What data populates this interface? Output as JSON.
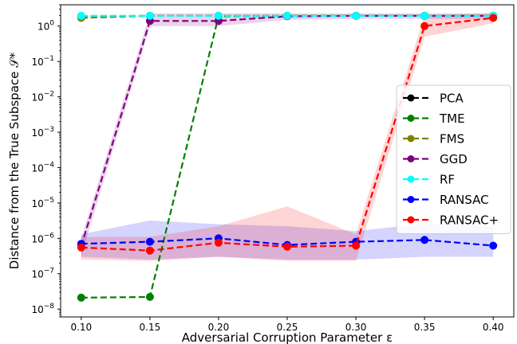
{
  "chart_data": {
    "type": "line",
    "title": "",
    "xlabel": "Adversarial Corruption Parameter ε",
    "ylabel": "Distance from the True Subspace 𝒮*",
    "y_scale": "log",
    "xlim": [
      0.085,
      0.415
    ],
    "ylim": [
      6e-09,
      4
    ],
    "x_ticks": [
      0.1,
      0.15,
      0.2,
      0.25,
      0.3,
      0.35,
      0.4
    ],
    "x_tick_labels": [
      "0.10",
      "0.15",
      "0.20",
      "0.25",
      "0.30",
      "0.35",
      "0.40"
    ],
    "y_ticks": [
      1e-08,
      1e-07,
      1e-06,
      1e-05,
      0.0001,
      0.001,
      0.01,
      0.1,
      1
    ],
    "y_tick_labels": [
      {
        "base": "10",
        "exp": "−8"
      },
      {
        "base": "10",
        "exp": "−7"
      },
      {
        "base": "10",
        "exp": "−6"
      },
      {
        "base": "10",
        "exp": "−5"
      },
      {
        "base": "10",
        "exp": "−4"
      },
      {
        "base": "10",
        "exp": "−3"
      },
      {
        "base": "10",
        "exp": "−2"
      },
      {
        "base": "10",
        "exp": "−1"
      },
      {
        "base": "10",
        "exp": "0"
      }
    ],
    "grid": false,
    "legend_position": "center-right",
    "x": [
      0.1,
      0.15,
      0.2,
      0.25,
      0.3,
      0.35,
      0.4
    ],
    "series": [
      {
        "name": "PCA",
        "color": "#000000",
        "values": [
          1.9,
          1.95,
          1.95,
          1.95,
          1.95,
          1.95,
          1.95
        ]
      },
      {
        "name": "TME",
        "color": "#008000",
        "values": [
          2.1e-08,
          2.2e-08,
          1.9,
          1.95,
          1.95,
          1.95,
          1.95
        ]
      },
      {
        "name": "FMS",
        "color": "#808000",
        "values": [
          1.7,
          1.95,
          1.95,
          1.95,
          1.95,
          1.95,
          1.95
        ]
      },
      {
        "name": "GGD",
        "color": "#800080",
        "values": [
          6e-07,
          1.4,
          1.4,
          1.9,
          1.95,
          1.95,
          1.95
        ],
        "band_low": [
          3e-07,
          1.0,
          1.0,
          1.5,
          1.6,
          1.6,
          1.6
        ],
        "band_high": [
          1e-06,
          2.3,
          2.3,
          2.3,
          2.3,
          2.3,
          2.3
        ]
      },
      {
        "name": "RF",
        "color": "#00ffff",
        "values": [
          1.95,
          1.95,
          1.95,
          1.95,
          1.95,
          1.95,
          1.95
        ]
      },
      {
        "name": "RANSAC",
        "color": "#0000ff",
        "values": [
          7e-07,
          8e-07,
          1e-06,
          6.5e-07,
          8e-07,
          9e-07,
          6.2e-07
        ],
        "band_low": [
          3e-07,
          2.5e-07,
          3e-07,
          2.5e-07,
          2.5e-07,
          3e-07,
          3e-07
        ],
        "band_high": [
          1.3e-06,
          3.2e-06,
          2.5e-06,
          2.2e-06,
          1.6e-06,
          2.6e-06,
          2.2e-06
        ]
      },
      {
        "name": "RANSAC+",
        "color": "#ff0000",
        "values": [
          5.5e-07,
          4.5e-07,
          7.5e-07,
          5.8e-07,
          6.2e-07,
          1.0,
          1.7
        ],
        "band_low": [
          2.5e-07,
          2.3e-07,
          3e-07,
          2.3e-07,
          2.3e-07,
          0.5,
          1.2
        ],
        "band_high": [
          1.1e-06,
          1.1e-06,
          2.2e-06,
          8e-06,
          1.3e-06,
          2.0,
          2.3
        ]
      }
    ]
  }
}
